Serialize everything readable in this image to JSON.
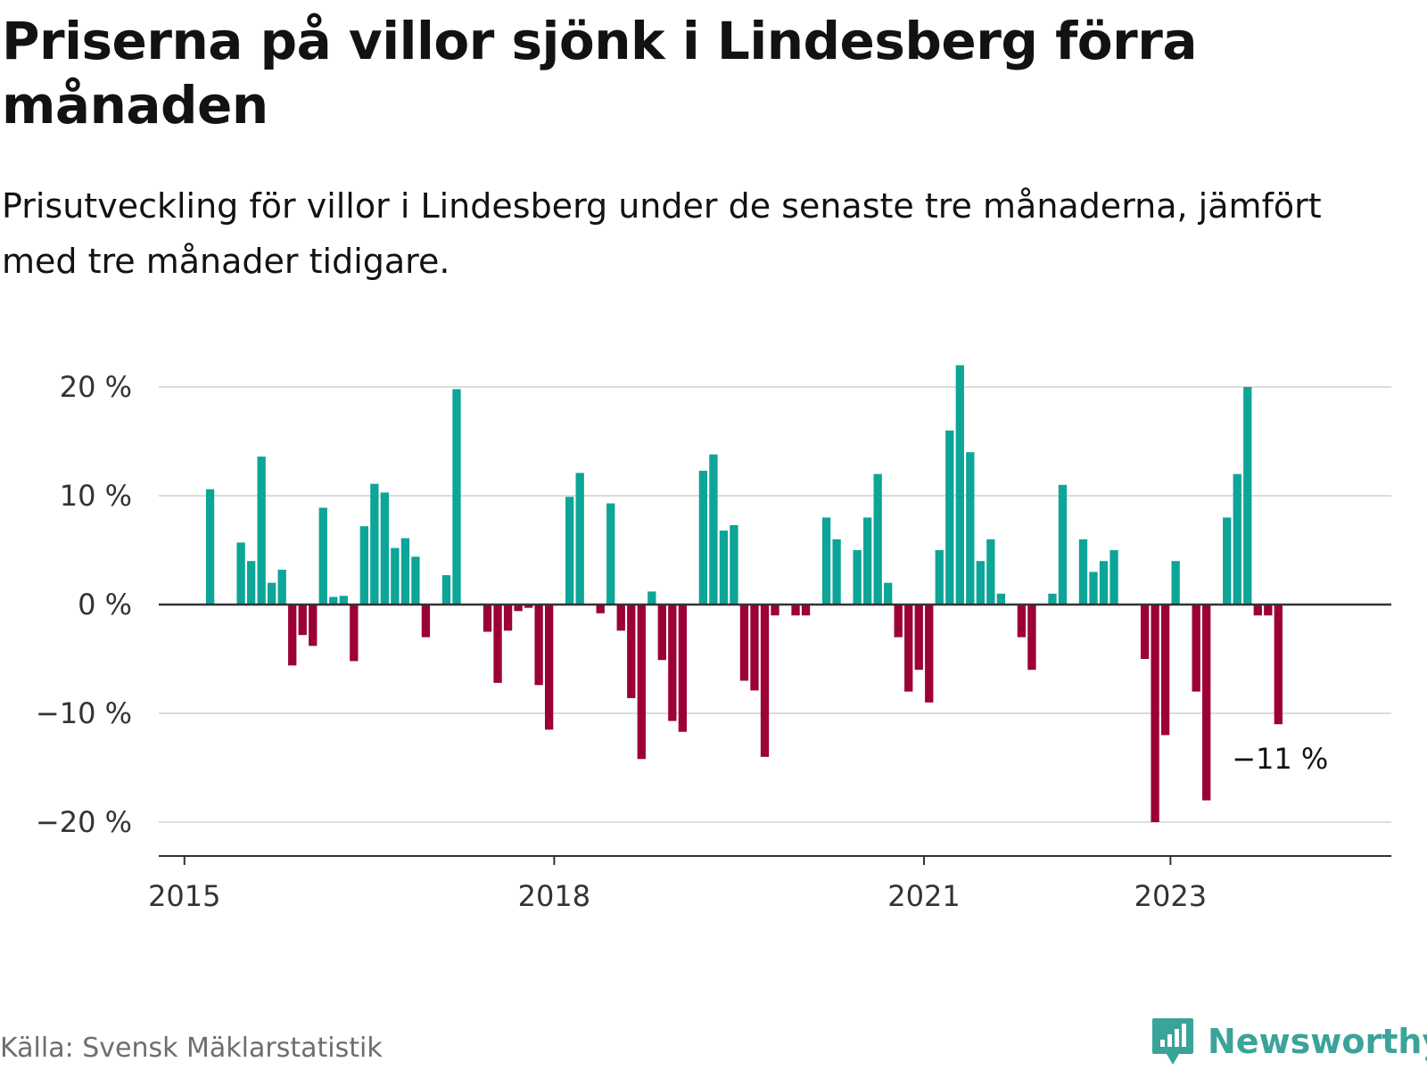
{
  "title": "Priserna på villor sjönk i Lindesberg förra månaden",
  "subtitle": "Prisutveckling för villor i Lindesberg under de senaste tre månaderna, jämfört med tre månader tidigare.",
  "source": "Källa: Svensk Mäklarstatistik",
  "brand": {
    "name": "Newsworthy",
    "icon": "newsworthy-logo-icon"
  },
  "colors": {
    "positive": "#0da597",
    "negative": "#9b0037",
    "grid": "#dcdcdc",
    "axis": "#333333",
    "brand": "#3aa39a"
  },
  "chart_data": {
    "type": "bar",
    "title": "Priserna på villor sjönk i Lindesberg förra månaden",
    "subtitle": "Prisutveckling för villor i Lindesberg under de senaste tre månaderna, jämfört med tre månader tidigare.",
    "xlabel": "",
    "ylabel": "",
    "unit": "%",
    "grid": true,
    "ylim": [
      -23,
      23
    ],
    "y_ticks": [
      20,
      10,
      0,
      -10,
      -20
    ],
    "y_tick_labels": [
      "20 %",
      "10 %",
      "0 %",
      "−10 %",
      "−20 %"
    ],
    "x_ticks": [
      "2015-01",
      "2018-01",
      "2021-01",
      "2023-01"
    ],
    "x_tick_labels": [
      "2015",
      "2018",
      "2021",
      "2023"
    ],
    "x_range": [
      "2014-10",
      "2024-10"
    ],
    "series": [
      {
        "values": [
          [
            "2015-03",
            10.6
          ],
          [
            "2015-06",
            5.7
          ],
          [
            "2015-07",
            4.0
          ],
          [
            "2015-08",
            13.6
          ],
          [
            "2015-09",
            2.0
          ],
          [
            "2015-10",
            3.2
          ],
          [
            "2015-11",
            -5.6
          ],
          [
            "2015-12",
            -2.8
          ],
          [
            "2016-01",
            -3.8
          ],
          [
            "2016-02",
            8.9
          ],
          [
            "2016-03",
            0.7
          ],
          [
            "2016-04",
            0.8
          ],
          [
            "2016-05",
            -5.2
          ],
          [
            "2016-06",
            7.2
          ],
          [
            "2016-07",
            11.1
          ],
          [
            "2016-08",
            10.3
          ],
          [
            "2016-09",
            5.2
          ],
          [
            "2016-10",
            6.1
          ],
          [
            "2016-11",
            4.4
          ],
          [
            "2016-12",
            -3.0
          ],
          [
            "2017-02",
            2.7
          ],
          [
            "2017-03",
            19.8
          ],
          [
            "2017-06",
            -2.5
          ],
          [
            "2017-07",
            -7.2
          ],
          [
            "2017-08",
            -2.4
          ],
          [
            "2017-09",
            -0.6
          ],
          [
            "2017-10",
            -0.3
          ],
          [
            "2017-11",
            -7.4
          ],
          [
            "2017-12",
            -11.5
          ],
          [
            "2018-02",
            9.9
          ],
          [
            "2018-03",
            12.1
          ],
          [
            "2018-05",
            -0.8
          ],
          [
            "2018-06",
            9.3
          ],
          [
            "2018-07",
            -2.4
          ],
          [
            "2018-08",
            -8.6
          ],
          [
            "2018-09",
            -14.2
          ],
          [
            "2018-10",
            1.2
          ],
          [
            "2018-11",
            -5.1
          ],
          [
            "2018-12",
            -10.7
          ],
          [
            "2019-01",
            -11.7
          ],
          [
            "2019-03",
            12.3
          ],
          [
            "2019-04",
            13.8
          ],
          [
            "2019-05",
            6.8
          ],
          [
            "2019-06",
            7.3
          ],
          [
            "2019-07",
            -7.0
          ],
          [
            "2019-08",
            -7.9
          ],
          [
            "2019-09",
            -14.0
          ],
          [
            "2019-10",
            -1.0
          ],
          [
            "2019-12",
            -1.0
          ],
          [
            "2020-01",
            -1.0
          ],
          [
            "2020-03",
            8.0
          ],
          [
            "2020-04",
            6.0
          ],
          [
            "2020-06",
            5.0
          ],
          [
            "2020-07",
            8.0
          ],
          [
            "2020-08",
            12.0
          ],
          [
            "2020-09",
            2.0
          ],
          [
            "2020-10",
            -3.0
          ],
          [
            "2020-11",
            -8.0
          ],
          [
            "2020-12",
            -6.0
          ],
          [
            "2021-01",
            -9.0
          ],
          [
            "2021-02",
            5.0
          ],
          [
            "2021-03",
            16.0
          ],
          [
            "2021-04",
            22.0
          ],
          [
            "2021-05",
            14.0
          ],
          [
            "2021-06",
            4.0
          ],
          [
            "2021-07",
            6.0
          ],
          [
            "2021-08",
            1.0
          ],
          [
            "2021-10",
            -3.0
          ],
          [
            "2021-11",
            -6.0
          ],
          [
            "2022-01",
            1.0
          ],
          [
            "2022-02",
            11.0
          ],
          [
            "2022-04",
            6.0
          ],
          [
            "2022-05",
            3.0
          ],
          [
            "2022-06",
            4.0
          ],
          [
            "2022-07",
            5.0
          ],
          [
            "2022-10",
            -5.0
          ],
          [
            "2022-11",
            -20.0
          ],
          [
            "2022-12",
            -12.0
          ],
          [
            "2023-01",
            4.0
          ],
          [
            "2023-03",
            -8.0
          ],
          [
            "2023-04",
            -18.0
          ],
          [
            "2023-06",
            8.0
          ],
          [
            "2023-07",
            12.0
          ],
          [
            "2023-08",
            20.0
          ],
          [
            "2023-09",
            -1.0
          ],
          [
            "2023-10",
            -1.0
          ],
          [
            "2023-11",
            -11.0
          ]
        ]
      }
    ],
    "annotations": [
      {
        "x": "2023-11",
        "y": -11.0,
        "text": "−11 %"
      }
    ]
  }
}
